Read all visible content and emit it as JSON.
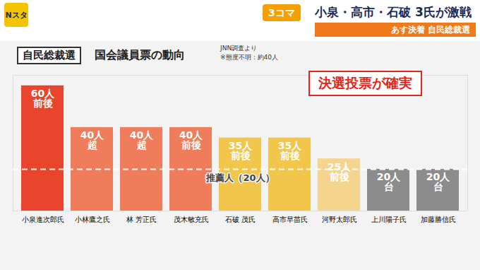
{
  "header": {
    "logo": "Nスタ",
    "badge": "3コマ",
    "headline": "小泉・高市・石破 3氏が激戦",
    "subheadline": "あす決着 自民総裁選"
  },
  "chart_data": {
    "type": "bar",
    "title": "自民総裁選",
    "subtitle": "国会議員票の動向",
    "source": "JNN調査より",
    "note": "※態度不明：約40人",
    "categories": [
      "小泉進次郎氏",
      "小林鷹之氏",
      "林 芳正氏",
      "茂木敏充氏",
      "石破 茂氏",
      "高市早苗氏",
      "河野太郎氏",
      "上川陽子氏",
      "加藤勝信氏"
    ],
    "values": [
      60,
      40,
      40,
      40,
      35,
      35,
      25,
      20,
      20
    ],
    "value_labels": [
      "60人前後",
      "40人超",
      "40人超",
      "40人前後",
      "35人前後",
      "35人前後",
      "25人前後",
      "20人台",
      "20人台"
    ],
    "colors": [
      "#e8452c",
      "#ef7c5a",
      "#ef7c5a",
      "#ef7c5a",
      "#f2c64a",
      "#f2c64a",
      "#f5d48e",
      "#8c8c8c",
      "#8c8c8c"
    ],
    "ylim": [
      0,
      65
    ],
    "tick_labels": "x",
    "data_labels": true,
    "annotations": [
      {
        "text": "決選投票が確実"
      },
      {
        "text": "推薦人（20人）",
        "y": 20
      }
    ]
  }
}
